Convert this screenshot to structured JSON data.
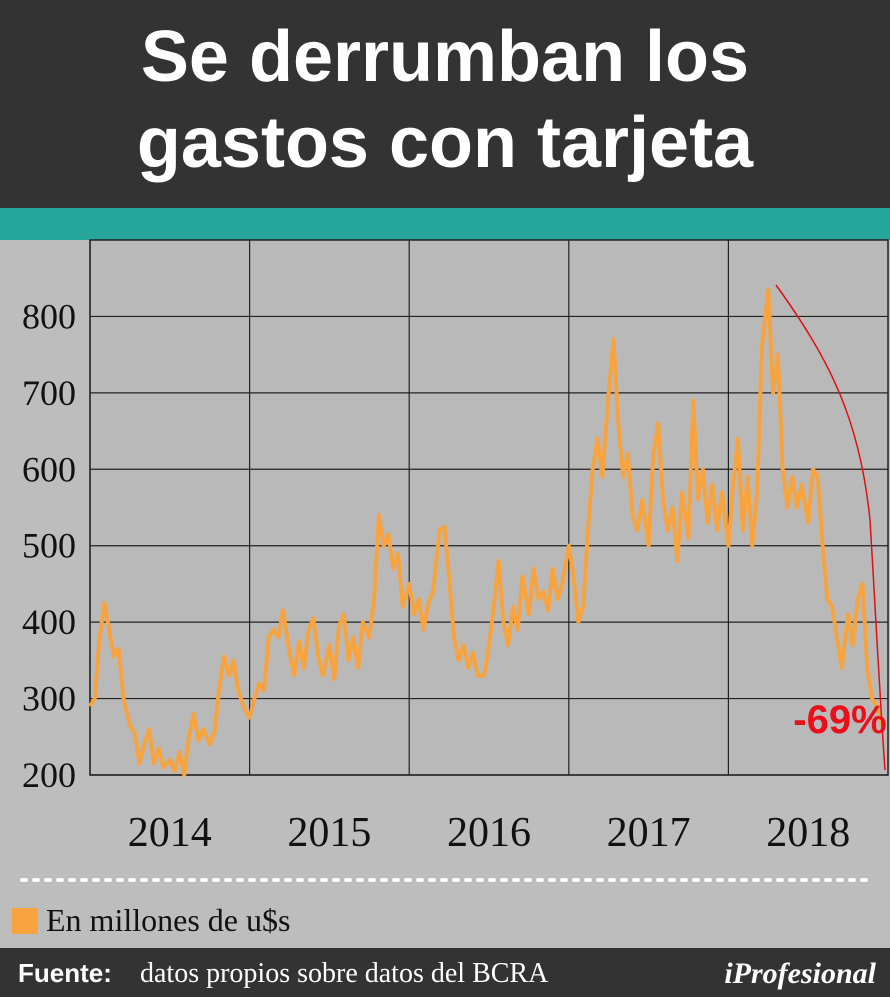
{
  "chart_data": {
    "type": "line",
    "title": "Se derrumban los gastos con tarjeta",
    "annotation": "-69%",
    "legend_label": "En millones de u$s",
    "source_label": "Fuente:",
    "source_text": "datos propios sobre datos del BCRA",
    "brand": "iProfesional",
    "xlim": [
      2014,
      2019
    ],
    "xticks": [
      {
        "value": 2014.5,
        "label": "2014"
      },
      {
        "value": 2015.5,
        "label": "2015"
      },
      {
        "value": 2016.5,
        "label": "2016"
      },
      {
        "value": 2017.5,
        "label": "2017"
      },
      {
        "value": 2018.5,
        "label": "2018"
      }
    ],
    "ylim": [
      200,
      900
    ],
    "yticks": [
      200,
      300,
      400,
      500,
      600,
      700,
      800
    ],
    "grid": true,
    "series": [
      {
        "name": "En millones de u$s",
        "color": "#f7a440",
        "x": [
          2014.0,
          2014.03,
          2014.06,
          2014.09,
          2014.12,
          2014.15,
          2014.18,
          2014.21,
          2014.25,
          2014.28,
          2014.31,
          2014.34,
          2014.37,
          2014.4,
          2014.43,
          2014.46,
          2014.5,
          2014.53,
          2014.56,
          2014.59,
          2014.62,
          2014.65,
          2014.68,
          2014.71,
          2014.75,
          2014.78,
          2014.81,
          2014.84,
          2014.87,
          2014.9,
          2014.93,
          2014.97,
          2015.0,
          2015.03,
          2015.06,
          2015.09,
          2015.12,
          2015.15,
          2015.18,
          2015.21,
          2015.25,
          2015.28,
          2015.31,
          2015.34,
          2015.37,
          2015.4,
          2015.43,
          2015.46,
          2015.5,
          2015.53,
          2015.56,
          2015.59,
          2015.62,
          2015.65,
          2015.68,
          2015.71,
          2015.75,
          2015.78,
          2015.81,
          2015.84,
          2015.87,
          2015.9,
          2015.93,
          2015.96,
          2016.0,
          2016.03,
          2016.06,
          2016.09,
          2016.12,
          2016.15,
          2016.19,
          2016.22,
          2016.25,
          2016.28,
          2016.31,
          2016.34,
          2016.37,
          2016.4,
          2016.43,
          2016.47,
          2016.5,
          2016.53,
          2016.56,
          2016.59,
          2016.62,
          2016.65,
          2016.68,
          2016.71,
          2016.75,
          2016.78,
          2016.81,
          2016.84,
          2016.87,
          2016.9,
          2016.93,
          2016.96,
          2017.0,
          2017.03,
          2017.06,
          2017.09,
          2017.12,
          2017.15,
          2017.18,
          2017.21,
          2017.25,
          2017.28,
          2017.31,
          2017.34,
          2017.37,
          2017.4,
          2017.43,
          2017.46,
          2017.5,
          2017.53,
          2017.56,
          2017.59,
          2017.62,
          2017.65,
          2017.68,
          2017.71,
          2017.75,
          2017.78,
          2017.81,
          2017.84,
          2017.87,
          2017.9,
          2017.93,
          2017.96,
          2018.0,
          2018.03,
          2018.06,
          2018.09,
          2018.12,
          2018.15,
          2018.18,
          2018.21,
          2018.25,
          2018.28,
          2018.31,
          2018.34,
          2018.37,
          2018.4,
          2018.43,
          2018.46,
          2018.5,
          2018.53,
          2018.56,
          2018.59,
          2018.62,
          2018.65,
          2018.68,
          2018.71,
          2018.75,
          2018.78,
          2018.81,
          2018.84,
          2018.87,
          2018.9,
          2018.93,
          2018.97
        ],
        "values": [
          290,
          300,
          380,
          425,
          390,
          355,
          365,
          300,
          265,
          255,
          215,
          240,
          260,
          215,
          235,
          210,
          220,
          205,
          230,
          200,
          250,
          280,
          245,
          260,
          240,
          255,
          315,
          355,
          330,
          350,
          310,
          285,
          275,
          300,
          320,
          310,
          380,
          390,
          380,
          415,
          360,
          330,
          375,
          340,
          390,
          405,
          355,
          330,
          370,
          325,
          395,
          410,
          350,
          380,
          340,
          400,
          380,
          430,
          540,
          500,
          515,
          470,
          490,
          420,
          450,
          410,
          430,
          390,
          425,
          440,
          520,
          525,
          460,
          380,
          350,
          370,
          340,
          360,
          330,
          330,
          370,
          420,
          480,
          400,
          370,
          420,
          390,
          460,
          410,
          470,
          430,
          440,
          415,
          470,
          430,
          450,
          500,
          460,
          400,
          420,
          520,
          600,
          640,
          590,
          700,
          770,
          660,
          590,
          620,
          540,
          520,
          560,
          500,
          620,
          660,
          560,
          520,
          550,
          480,
          570,
          510,
          690,
          560,
          600,
          530,
          580,
          520,
          570,
          500,
          580,
          640,
          520,
          590,
          500,
          570,
          760,
          835,
          700,
          750,
          600,
          550,
          590,
          550,
          580,
          530,
          600,
          590,
          500,
          430,
          420,
          380,
          340,
          410,
          370,
          430,
          450,
          340,
          300,
          290,
          260
        ]
      }
    ]
  }
}
